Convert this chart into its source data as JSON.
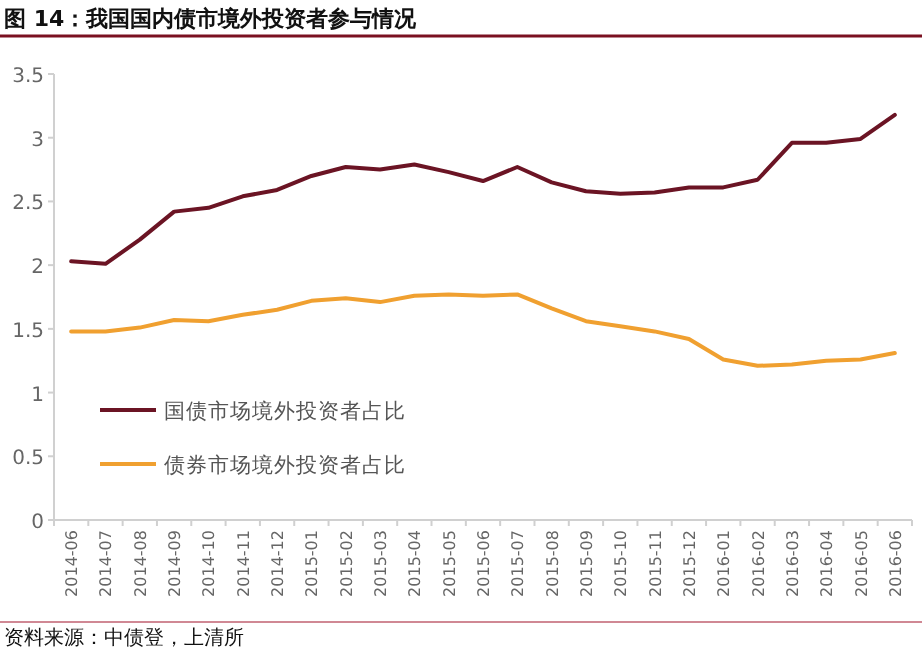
{
  "chart_data": {
    "type": "line",
    "title": "图 14：我国国内债市境外投资者参与情况",
    "categories": [
      "2014-06",
      "2014-07",
      "2014-08",
      "2014-09",
      "2014-10",
      "2014-11",
      "2014-12",
      "2015-01",
      "2015-02",
      "2015-03",
      "2015-04",
      "2015-05",
      "2015-06",
      "2015-07",
      "2015-08",
      "2015-09",
      "2015-10",
      "2015-11",
      "2015-12",
      "2016-01",
      "2016-02",
      "2016-03",
      "2016-04",
      "2016-05",
      "2016-06"
    ],
    "series": [
      {
        "name": "国债市场境外投资者占比",
        "color": "#6b1424",
        "values": [
          2.03,
          2.01,
          2.2,
          2.42,
          2.45,
          2.54,
          2.59,
          2.7,
          2.77,
          2.75,
          2.79,
          2.73,
          2.66,
          2.77,
          2.65,
          2.58,
          2.56,
          2.57,
          2.61,
          2.61,
          2.67,
          2.96,
          2.96,
          2.99,
          3.18
        ]
      },
      {
        "name": "债券市场境外投资者占比",
        "color": "#f0a030",
        "values": [
          1.48,
          1.48,
          1.51,
          1.57,
          1.56,
          1.61,
          1.65,
          1.72,
          1.74,
          1.71,
          1.76,
          1.77,
          1.76,
          1.77,
          1.66,
          1.56,
          1.52,
          1.48,
          1.42,
          1.26,
          1.21,
          1.22,
          1.25,
          1.26,
          1.31
        ]
      }
    ],
    "ylim": [
      0,
      3.5
    ],
    "yticks": [
      0,
      0.5,
      1,
      1.5,
      2,
      2.5,
      3,
      3.5
    ],
    "legend": "bottom left",
    "marker": "none",
    "line_style": "solid",
    "annotations": [
      "资料来源：中债登，上清所"
    ]
  }
}
